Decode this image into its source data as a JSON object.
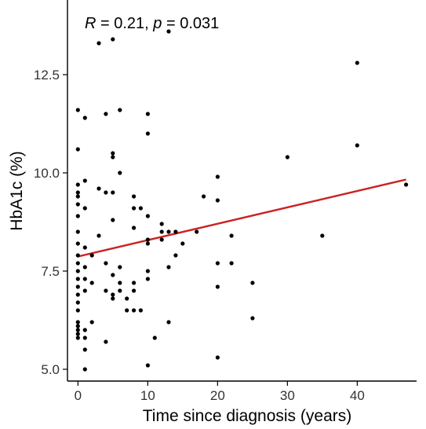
{
  "chart_data": {
    "type": "scatter",
    "xlabel": "Time since diagnosis (years)",
    "ylabel": "HbA1c (%)",
    "xlim": [
      -1.5,
      48.5
    ],
    "ylim": [
      4.7,
      14.4
    ],
    "x_ticks": [
      0,
      10,
      20,
      30,
      40
    ],
    "y_ticks": [
      5.0,
      7.5,
      10.0,
      12.5
    ],
    "y_tick_labels": [
      "5.0",
      "7.5",
      "10.0",
      "12.5"
    ],
    "annotation": {
      "r_symbol": "R",
      "r_text": " = 0.21, ",
      "p_symbol": "p",
      "p_text": " = 0.031"
    },
    "grid": false,
    "point_color": "#000000",
    "fit_line": {
      "x": [
        0,
        47
      ],
      "y": [
        7.87,
        9.83
      ],
      "color": "#cc2222"
    },
    "points": [
      [
        0,
        11.6
      ],
      [
        0,
        10.6
      ],
      [
        0,
        9.7
      ],
      [
        0,
        9.5
      ],
      [
        0,
        9.4
      ],
      [
        0,
        9.2
      ],
      [
        0,
        8.9
      ],
      [
        0,
        8.5
      ],
      [
        0,
        8.2
      ],
      [
        0,
        7.9
      ],
      [
        0,
        7.7
      ],
      [
        0,
        7.5
      ],
      [
        0,
        7.3
      ],
      [
        0,
        7.1
      ],
      [
        0,
        6.9
      ],
      [
        0,
        6.7
      ],
      [
        0,
        6.5
      ],
      [
        0,
        6.2
      ],
      [
        0,
        6.1
      ],
      [
        0,
        6.0
      ],
      [
        0,
        5.9
      ],
      [
        0,
        5.8
      ],
      [
        1,
        11.4
      ],
      [
        1,
        9.8
      ],
      [
        1,
        9.1
      ],
      [
        1,
        8.1
      ],
      [
        1,
        7.6
      ],
      [
        1,
        7.3
      ],
      [
        1,
        7.0
      ],
      [
        1,
        6.0
      ],
      [
        1,
        5.8
      ],
      [
        1,
        5.5
      ],
      [
        1,
        5.0
      ],
      [
        2,
        7.9
      ],
      [
        2,
        7.2
      ],
      [
        2,
        6.2
      ],
      [
        3,
        13.3
      ],
      [
        3,
        9.6
      ],
      [
        3,
        8.4
      ],
      [
        4,
        11.5
      ],
      [
        4,
        9.5
      ],
      [
        4,
        7.7
      ],
      [
        4,
        7.0
      ],
      [
        4,
        5.7
      ],
      [
        5,
        13.4
      ],
      [
        5,
        10.5
      ],
      [
        5,
        10.4
      ],
      [
        5,
        9.5
      ],
      [
        5,
        8.8
      ],
      [
        5,
        7.4
      ],
      [
        5,
        6.9
      ],
      [
        5,
        6.8
      ],
      [
        6,
        11.6
      ],
      [
        6,
        10.0
      ],
      [
        6,
        7.6
      ],
      [
        6,
        7.2
      ],
      [
        6,
        7.0
      ],
      [
        7,
        6.8
      ],
      [
        7,
        6.5
      ],
      [
        8,
        9.4
      ],
      [
        8,
        9.1
      ],
      [
        8,
        8.6
      ],
      [
        8,
        7.2
      ],
      [
        8,
        7.0
      ],
      [
        8,
        6.5
      ],
      [
        9,
        9.1
      ],
      [
        9,
        6.5
      ],
      [
        10,
        11.5
      ],
      [
        10,
        11.0
      ],
      [
        10,
        8.9
      ],
      [
        10,
        8.3
      ],
      [
        10,
        8.2
      ],
      [
        10,
        7.5
      ],
      [
        10,
        7.3
      ],
      [
        10,
        5.1
      ],
      [
        11,
        5.8
      ],
      [
        12,
        8.7
      ],
      [
        12,
        8.5
      ],
      [
        12,
        8.3
      ],
      [
        13,
        13.6
      ],
      [
        13,
        8.5
      ],
      [
        13,
        7.6
      ],
      [
        13,
        6.2
      ],
      [
        14,
        8.5
      ],
      [
        14,
        7.9
      ],
      [
        15,
        8.2
      ],
      [
        17,
        8.5
      ],
      [
        18,
        9.4
      ],
      [
        20,
        9.9
      ],
      [
        20,
        9.3
      ],
      [
        20,
        7.7
      ],
      [
        20,
        7.1
      ],
      [
        20,
        5.3
      ],
      [
        22,
        8.4
      ],
      [
        22,
        7.7
      ],
      [
        25,
        7.2
      ],
      [
        25,
        6.3
      ],
      [
        30,
        10.4
      ],
      [
        35,
        8.4
      ],
      [
        40,
        12.8
      ],
      [
        40,
        10.7
      ],
      [
        47,
        9.7
      ]
    ]
  }
}
